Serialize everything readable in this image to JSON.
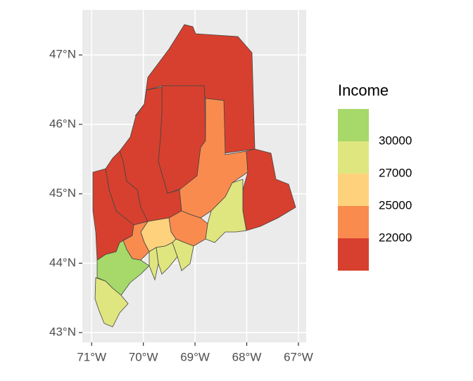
{
  "chart_data": {
    "type": "map",
    "xlim": [
      -71.18,
      -66.85
    ],
    "ylim": [
      42.86,
      47.65
    ],
    "xticks": [
      {
        "value": -71,
        "label": "71°W"
      },
      {
        "value": -70,
        "label": "70°W"
      },
      {
        "value": -69,
        "label": "69°W"
      },
      {
        "value": -68,
        "label": "68°W"
      },
      {
        "value": -67,
        "label": "67°W"
      }
    ],
    "yticks": [
      {
        "value": 43,
        "label": "43°N"
      },
      {
        "value": 44,
        "label": "44°N"
      },
      {
        "value": 45,
        "label": "45°N"
      },
      {
        "value": 46,
        "label": "46°N"
      },
      {
        "value": 47,
        "label": "47°N"
      }
    ],
    "grid": true,
    "legend": {
      "title": "Income",
      "position": "right",
      "colors": [
        "#a6d96a",
        "#e0e67f",
        "#fed27d",
        "#f98b4f",
        "#d7402e"
      ],
      "breaks": [
        30000,
        27000,
        25000,
        22000
      ]
    },
    "regions": [
      {
        "color": "#d7402e"
      },
      {
        "color": "#d7402e"
      },
      {
        "color": "#d7402e"
      },
      {
        "color": "#d7402e"
      },
      {
        "color": "#d7402e"
      },
      {
        "color": "#f98b4f"
      },
      {
        "color": "#d7402e"
      },
      {
        "color": "#e0e67f"
      },
      {
        "color": "#f98b4f"
      },
      {
        "color": "#fed27d"
      },
      {
        "color": "#f98b4f"
      },
      {
        "color": "#a6d96a"
      },
      {
        "color": "#e0e67f"
      },
      {
        "color": "#e0e67f"
      },
      {
        "color": "#e0e67f"
      },
      {
        "color": "#e0e67f"
      }
    ]
  }
}
